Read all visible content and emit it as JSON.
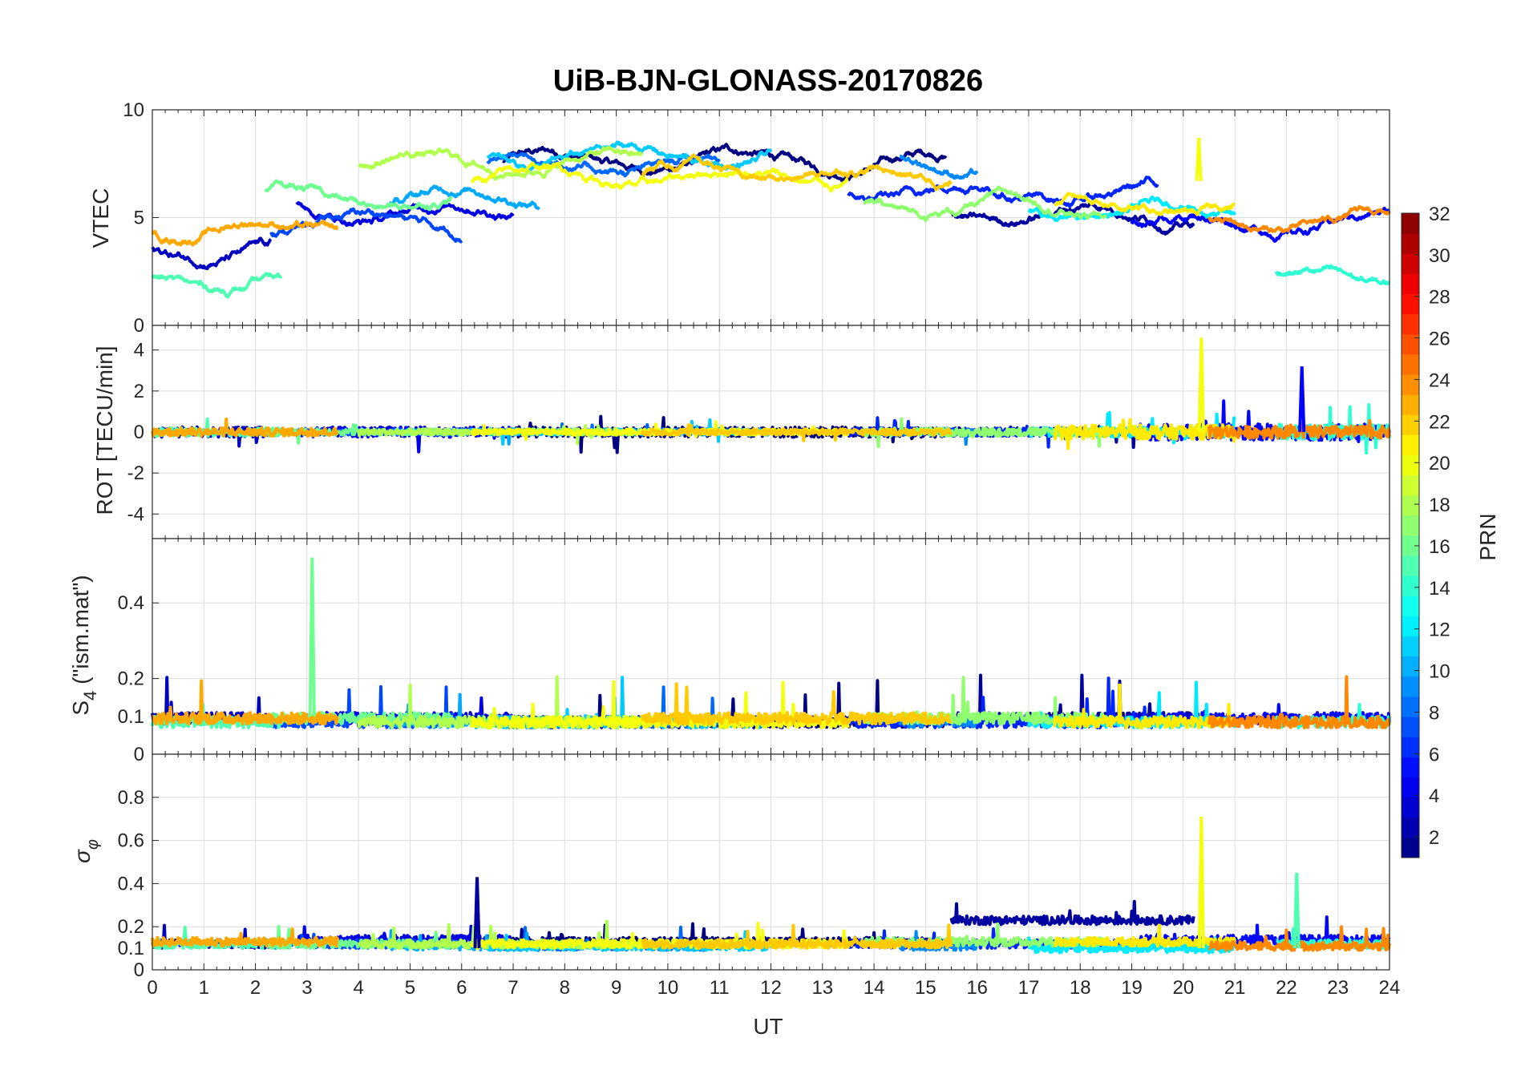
{
  "figure": {
    "title": "UiB-BJN-GLONASS-20170826",
    "xlabel": "UT",
    "x_ticks": [
      "0",
      "1",
      "2",
      "3",
      "4",
      "5",
      "6",
      "7",
      "8",
      "9",
      "10",
      "11",
      "12",
      "13",
      "14",
      "15",
      "16",
      "17",
      "18",
      "19",
      "20",
      "21",
      "22",
      "23",
      "24"
    ]
  },
  "panels": [
    {
      "id": "vtec",
      "ylabel": "VTEC",
      "ylim": [
        0,
        10
      ],
      "y_ticks": [
        "0",
        "5",
        "10"
      ]
    },
    {
      "id": "rot",
      "ylabel": "ROT [TECU/min]",
      "ylim": [
        -5.2,
        5.2
      ],
      "y_ticks": [
        "-4",
        "-2",
        "0",
        "2",
        "4"
      ]
    },
    {
      "id": "s4",
      "ylabel_main": "S",
      "ylabel_sub": "4",
      "ylabel_rest": " (\"ism.mat\")",
      "ylim": [
        0,
        0.57
      ],
      "y_ticks": [
        "0",
        "0.1",
        "0.2",
        "0.4"
      ]
    },
    {
      "id": "sigma",
      "ylabel_main": "σ",
      "ylabel_sub": "φ",
      "ylim": [
        0,
        1
      ],
      "y_ticks": [
        "0",
        "0.1",
        "0.2",
        "0.4",
        "0.6",
        "0.8"
      ]
    }
  ],
  "colorbar": {
    "label": "PRN",
    "range": [
      1,
      32
    ],
    "ticks": [
      "2",
      "4",
      "6",
      "8",
      "10",
      "12",
      "14",
      "16",
      "18",
      "20",
      "22",
      "24",
      "26",
      "28",
      "30",
      "32"
    ]
  },
  "chart_data": {
    "type": "line",
    "title": "UiB-BJN-GLONASS-20170826",
    "xlabel": "UT",
    "xlim": [
      0,
      24
    ],
    "color_by": "PRN",
    "color_range": [
      1,
      32
    ],
    "series": [
      {
        "prn": 1,
        "x0": 6.8,
        "x1": 15.4,
        "vtec_level": 7.6,
        "rot_spread": 0.5,
        "s4_base": 0.07,
        "sigma_base": 0.13
      },
      {
        "prn": 2,
        "x0": 15.5,
        "x1": 20.2,
        "vtec_level": 5.2,
        "rot_spread": 0.4,
        "s4_base": 0.08,
        "sigma_base": 0.23
      },
      {
        "prn": 3,
        "x0": 0.0,
        "x1": 2.3,
        "vtec_level": 3.5,
        "rot_spread": 0.5,
        "s4_base": 0.08,
        "sigma_base": 0.12
      },
      {
        "prn": 4,
        "x0": 2.8,
        "x1": 7.0,
        "vtec_level": 5.3,
        "rot_spread": 0.5,
        "s4_base": 0.08,
        "sigma_base": 0.14
      },
      {
        "prn": 5,
        "x0": 19.0,
        "x1": 24.0,
        "vtec_level": 4.8,
        "rot_spread": 0.8,
        "s4_base": 0.08,
        "sigma_base": 0.14
      },
      {
        "prn": 6,
        "x0": 13.5,
        "x1": 19.5,
        "vtec_level": 6.2,
        "rot_spread": 0.4,
        "s4_base": 0.07,
        "sigma_base": 0.12
      },
      {
        "prn": 7,
        "x0": 2.3,
        "x1": 6.0,
        "vtec_level": 4.8,
        "rot_spread": 0.3,
        "s4_base": 0.07,
        "sigma_base": 0.12
      },
      {
        "prn": 8,
        "x0": 6.5,
        "x1": 11.0,
        "vtec_level": 7.5,
        "rot_spread": 0.3,
        "s4_base": 0.07,
        "sigma_base": 0.11
      },
      {
        "prn": 9,
        "x0": 14.5,
        "x1": 16.0,
        "vtec_level": 7.5,
        "rot_spread": 0.3,
        "s4_base": 0.07,
        "sigma_base": 0.11
      },
      {
        "prn": 10,
        "x0": 4.6,
        "x1": 7.5,
        "vtec_level": 6.0,
        "rot_spread": 0.3,
        "s4_base": 0.07,
        "sigma_base": 0.11
      },
      {
        "prn": 11,
        "x0": 6.5,
        "x1": 12.0,
        "vtec_level": 7.8,
        "rot_spread": 0.3,
        "s4_base": 0.07,
        "sigma_base": 0.11
      },
      {
        "prn": 12,
        "x0": 17.0,
        "x1": 21.0,
        "vtec_level": 5.2,
        "rot_spread": 0.5,
        "s4_base": 0.07,
        "sigma_base": 0.1
      },
      {
        "prn": 14,
        "x0": 21.8,
        "x1": 24.0,
        "vtec_level": 2.2,
        "rot_spread": 0.7,
        "s4_base": 0.07,
        "sigma_base": 0.12
      },
      {
        "prn": 15,
        "x0": 0.0,
        "x1": 2.5,
        "vtec_level": 2.0,
        "rot_spread": 0.4,
        "s4_base": 0.07,
        "sigma_base": 0.12
      },
      {
        "prn": 16,
        "x0": 2.2,
        "x1": 5.8,
        "vtec_level": 5.8,
        "rot_spread": 0.3,
        "s4_base": 0.08,
        "sigma_base": 0.12
      },
      {
        "prn": 17,
        "x0": 13.8,
        "x1": 18.5,
        "vtec_level": 5.5,
        "rot_spread": 0.4,
        "s4_base": 0.08,
        "sigma_base": 0.13
      },
      {
        "prn": 18,
        "x0": 4.0,
        "x1": 9.5,
        "vtec_level": 7.6,
        "rot_spread": 0.3,
        "s4_base": 0.07,
        "sigma_base": 0.12
      },
      {
        "prn": 20,
        "x0": 6.2,
        "x1": 13.5,
        "vtec_level": 6.9,
        "rot_spread": 0.3,
        "s4_base": 0.07,
        "sigma_base": 0.12
      },
      {
        "prn": 21,
        "x0": 17.5,
        "x1": 21.0,
        "vtec_level": 5.5,
        "rot_spread": 0.7,
        "s4_base": 0.07,
        "sigma_base": 0.13
      },
      {
        "prn": 22,
        "x0": 9.5,
        "x1": 15.5,
        "vtec_level": 7.0,
        "rot_spread": 0.3,
        "s4_base": 0.08,
        "sigma_base": 0.12
      },
      {
        "prn": 23,
        "x0": 0.0,
        "x1": 3.6,
        "vtec_level": 4.5,
        "rot_spread": 0.4,
        "s4_base": 0.08,
        "sigma_base": 0.13
      },
      {
        "prn": 24,
        "x0": 20.5,
        "x1": 24.0,
        "vtec_level": 4.8,
        "rot_spread": 0.6,
        "s4_base": 0.07,
        "sigma_base": 0.11
      }
    ],
    "notable_peaks": [
      {
        "panel": "S4",
        "x": 3.1,
        "value": 0.52,
        "prn": 16
      },
      {
        "panel": "ROT",
        "x": 20.35,
        "value": 4.6,
        "prn": 20
      },
      {
        "panel": "sigma_phi",
        "x": 20.35,
        "value": 0.71,
        "prn": 20
      },
      {
        "panel": "sigma_phi",
        "x": 22.2,
        "value": 0.45,
        "prn": 15
      },
      {
        "panel": "sigma_phi",
        "x": 6.3,
        "value": 0.43,
        "prn": 2
      },
      {
        "panel": "ROT",
        "x": 22.3,
        "value": 3.2,
        "prn": 5
      },
      {
        "panel": "VTEC",
        "x": 20.3,
        "value": 8.7,
        "prn": 20
      }
    ]
  }
}
